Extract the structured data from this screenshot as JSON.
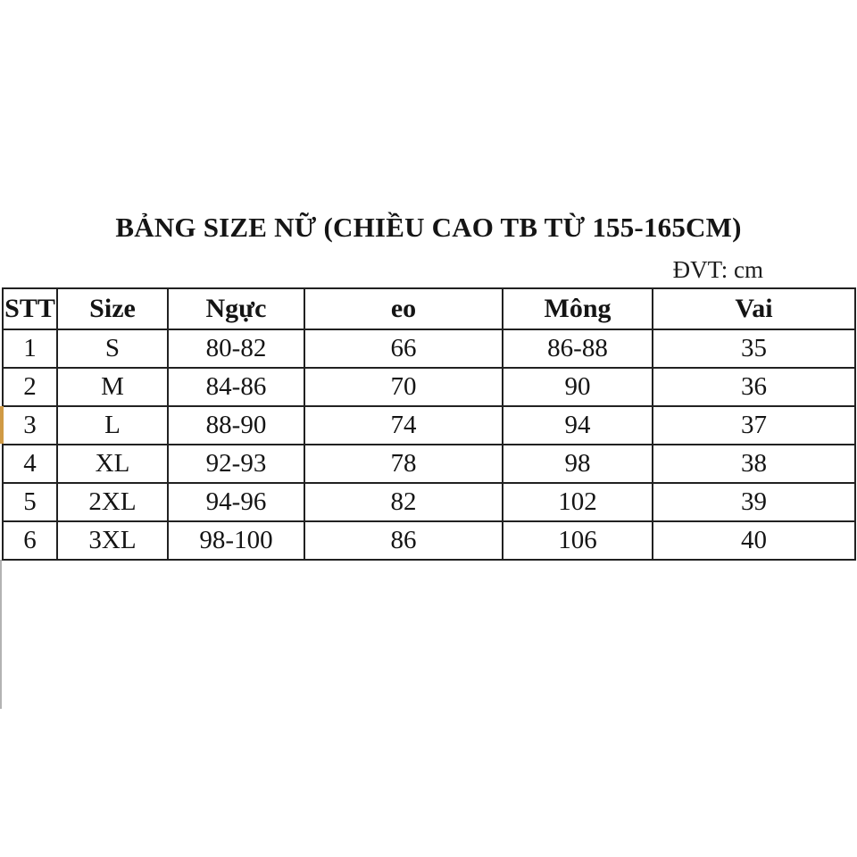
{
  "page": {
    "title": "BẢNG SIZE NỮ (CHIỀU CAO TB TỪ 155-165CM)",
    "unit_note": "ĐVT: cm"
  },
  "colors": {
    "table_border": "#212121",
    "accent_strip": "#d09a45",
    "faint_line": "#b3b3b3",
    "background": "#ffffff"
  },
  "table": {
    "headers": [
      "STT",
      "Size",
      "Ngực",
      "eo",
      "Mông",
      "Vai"
    ],
    "rows": [
      [
        "1",
        "S",
        "80-82",
        "66",
        "86-88",
        "35"
      ],
      [
        "2",
        "M",
        "84-86",
        "70",
        "90",
        "36"
      ],
      [
        "3",
        "L",
        "88-90",
        "74",
        "94",
        "37"
      ],
      [
        "4",
        "XL",
        "92-93",
        "78",
        "98",
        "38"
      ],
      [
        "5",
        "2XL",
        "94-96",
        "82",
        "102",
        "39"
      ],
      [
        "6",
        "3XL",
        "98-100",
        "86",
        "106",
        "40"
      ]
    ]
  }
}
